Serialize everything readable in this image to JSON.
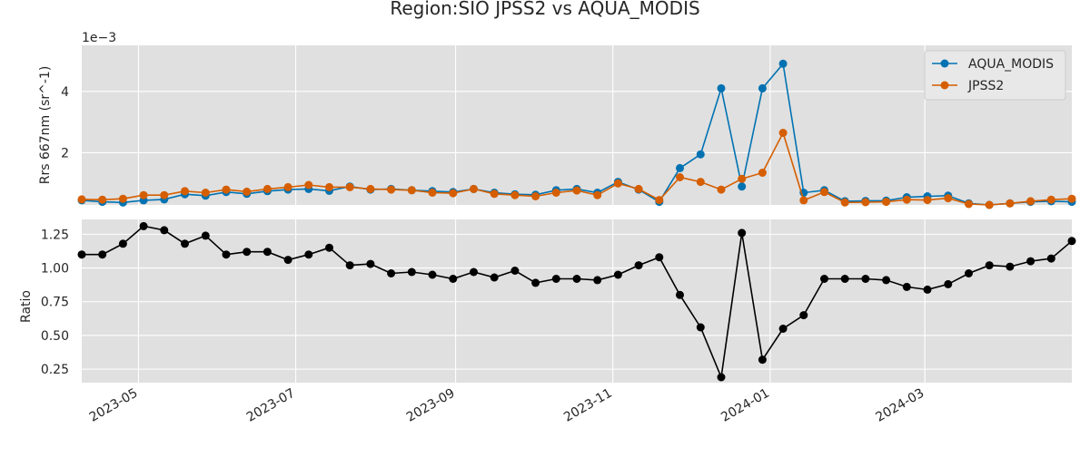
{
  "title": "Region:SIO JPSS2 vs AQUA_MODIS",
  "chart_data": [
    {
      "type": "line",
      "title": "",
      "ylabel": "Rrs 667nm (sr^-1)",
      "offset_text": "1e−3",
      "scale": 0.001,
      "ylim": [
        0.3,
        5.5
      ],
      "yticks": [
        2,
        4
      ],
      "ytick_labels": [
        "2",
        "4"
      ],
      "grid": true,
      "legend_position": "upper right",
      "series": [
        {
          "name": "AQUA_MODIS",
          "color": "#0072b2",
          "values": [
            0.45,
            0.4,
            0.38,
            0.45,
            0.48,
            0.65,
            0.6,
            0.72,
            0.66,
            0.75,
            0.8,
            0.82,
            0.76,
            0.9,
            0.8,
            0.82,
            0.78,
            0.75,
            0.72,
            0.82,
            0.7,
            0.65,
            0.63,
            0.78,
            0.82,
            0.7,
            1.05,
            0.8,
            0.4,
            1.5,
            1.95,
            4.1,
            0.9,
            4.1,
            4.9,
            0.7,
            0.78,
            0.42,
            0.43,
            0.44,
            0.55,
            0.58,
            0.6,
            0.35,
            0.3,
            0.35,
            0.4,
            0.42,
            0.4
          ]
        },
        {
          "name": "JPSS2",
          "color": "#d55e00",
          "values": [
            0.48,
            0.47,
            0.5,
            0.62,
            0.62,
            0.75,
            0.7,
            0.8,
            0.73,
            0.82,
            0.88,
            0.95,
            0.88,
            0.88,
            0.82,
            0.8,
            0.78,
            0.7,
            0.68,
            0.82,
            0.66,
            0.62,
            0.58,
            0.7,
            0.77,
            0.62,
            1.0,
            0.82,
            0.46,
            1.2,
            1.05,
            0.8,
            1.15,
            1.35,
            2.65,
            0.45,
            0.72,
            0.38,
            0.39,
            0.4,
            0.47,
            0.46,
            0.52,
            0.33,
            0.3,
            0.35,
            0.42,
            0.47,
            0.5
          ]
        }
      ]
    },
    {
      "type": "line",
      "title": "",
      "ylabel": "Ratio",
      "ylim": [
        0.15,
        1.36
      ],
      "yticks": [
        0.25,
        0.5,
        0.75,
        1.0,
        1.25
      ],
      "ytick_labels": [
        "0.25",
        "0.50",
        "0.75",
        "1.00",
        "1.25"
      ],
      "grid": true,
      "series": [
        {
          "name": "",
          "color": "#000000",
          "values": [
            1.1,
            1.1,
            1.18,
            1.31,
            1.28,
            1.18,
            1.24,
            1.1,
            1.12,
            1.12,
            1.06,
            1.1,
            1.15,
            1.02,
            1.03,
            0.96,
            0.97,
            0.95,
            0.92,
            0.97,
            0.93,
            0.98,
            0.89,
            0.92,
            0.92,
            0.91,
            0.95,
            1.02,
            1.08,
            0.8,
            0.56,
            0.19,
            1.26,
            0.32,
            0.55,
            0.65,
            0.92,
            0.92,
            0.92,
            0.91,
            0.86,
            0.84,
            0.88,
            0.96,
            1.02,
            1.01,
            1.05,
            1.07,
            1.2
          ]
        }
      ]
    }
  ],
  "x_axis": {
    "type": "date",
    "dates": [
      "2023-04-09",
      "2023-04-17",
      "2023-04-25",
      "2023-05-03",
      "2023-05-11",
      "2023-05-19",
      "2023-05-27",
      "2023-06-04",
      "2023-06-12",
      "2023-06-20",
      "2023-06-28",
      "2023-07-06",
      "2023-07-14",
      "2023-07-22",
      "2023-07-30",
      "2023-08-07",
      "2023-08-15",
      "2023-08-23",
      "2023-08-31",
      "2023-09-08",
      "2023-09-16",
      "2023-09-24",
      "2023-10-02",
      "2023-10-10",
      "2023-10-18",
      "2023-10-26",
      "2023-11-03",
      "2023-11-11",
      "2023-11-19",
      "2023-11-27",
      "2023-12-05",
      "2023-12-13",
      "2023-12-21",
      "2023-12-29",
      "2024-01-06",
      "2024-01-14",
      "2024-01-22",
      "2024-01-30",
      "2024-02-07",
      "2024-02-15",
      "2024-02-23",
      "2024-03-02",
      "2024-03-10",
      "2024-03-18",
      "2024-03-26",
      "2024-04-03",
      "2024-04-11",
      "2024-04-19",
      "2024-04-27"
    ],
    "xlim": [
      "2023-04-09",
      "2024-04-27"
    ],
    "ticks": [
      "2023-05-01",
      "2023-07-01",
      "2023-09-01",
      "2023-11-01",
      "2024-01-01",
      "2024-03-01"
    ],
    "tick_labels": [
      "2023-05",
      "2023-07",
      "2023-09",
      "2023-11",
      "2024-01",
      "2024-03"
    ]
  }
}
